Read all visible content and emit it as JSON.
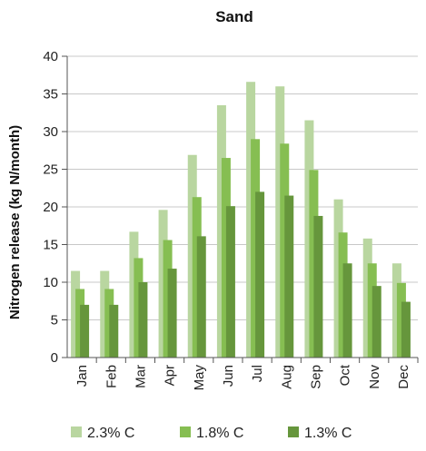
{
  "chart_data": {
    "type": "bar",
    "title": "Sand",
    "xlabel": "",
    "ylabel": "Nitrogen release (kg N/month)",
    "ylim": [
      0,
      40
    ],
    "yticks": [
      0,
      5,
      10,
      15,
      20,
      25,
      30,
      35,
      40
    ],
    "grid": true,
    "legend_position": "bottom",
    "categories": [
      "Jan",
      "Feb",
      "Mar",
      "Apr",
      "May",
      "Jun",
      "Jul",
      "Aug",
      "Sep",
      "Oct",
      "Nov",
      "Dec"
    ],
    "series": [
      {
        "name": "2.3% C",
        "color": "#b9d6a0",
        "values": [
          11.5,
          11.5,
          16.7,
          19.6,
          26.9,
          33.5,
          36.6,
          36.0,
          31.5,
          21.0,
          15.8,
          12.5
        ]
      },
      {
        "name": "1.8% C",
        "color": "#86be52",
        "values": [
          9.1,
          9.1,
          13.2,
          15.6,
          21.3,
          26.5,
          29.0,
          28.4,
          24.9,
          16.6,
          12.5,
          9.9
        ]
      },
      {
        "name": "1.3% C",
        "color": "#66963c",
        "values": [
          7.0,
          7.0,
          10.0,
          11.8,
          16.1,
          20.1,
          22.0,
          21.5,
          18.8,
          12.5,
          9.5,
          7.4
        ]
      }
    ]
  }
}
